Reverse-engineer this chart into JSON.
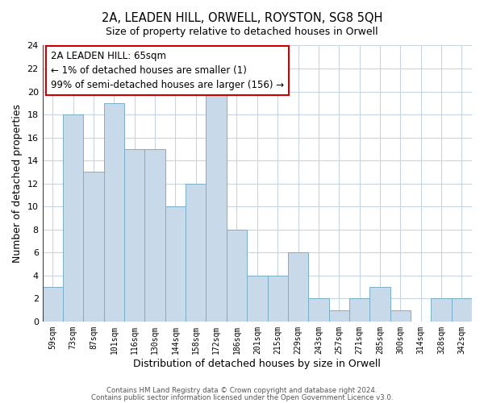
{
  "title": "2A, LEADEN HILL, ORWELL, ROYSTON, SG8 5QH",
  "subtitle": "Size of property relative to detached houses in Orwell",
  "xlabel": "Distribution of detached houses by size in Orwell",
  "ylabel": "Number of detached properties",
  "bar_labels": [
    "59sqm",
    "73sqm",
    "87sqm",
    "101sqm",
    "116sqm",
    "130sqm",
    "144sqm",
    "158sqm",
    "172sqm",
    "186sqm",
    "201sqm",
    "215sqm",
    "229sqm",
    "243sqm",
    "257sqm",
    "271sqm",
    "285sqm",
    "300sqm",
    "314sqm",
    "328sqm",
    "342sqm"
  ],
  "bar_values": [
    3,
    18,
    13,
    19,
    15,
    15,
    10,
    12,
    20,
    8,
    4,
    4,
    6,
    2,
    1,
    2,
    3,
    1,
    0,
    2,
    2
  ],
  "bar_color": "#c8daea",
  "bar_edge_color": "#7aafc8",
  "highlight_bar_index": 0,
  "highlight_bar_edge_color": "#cc0000",
  "annotation_line1": "2A LEADEN HILL: 65sqm",
  "annotation_line2": "← 1% of detached houses are smaller (1)",
  "annotation_line3": "99% of semi-detached houses are larger (156) →",
  "annotation_box_edge_color": "#cc0000",
  "annotation_box_face_color": "#ffffff",
  "red_line_color": "#cc0000",
  "ylim": [
    0,
    24
  ],
  "yticks": [
    0,
    2,
    4,
    6,
    8,
    10,
    12,
    14,
    16,
    18,
    20,
    22,
    24
  ],
  "footer1": "Contains HM Land Registry data © Crown copyright and database right 2024.",
  "footer2": "Contains public sector information licensed under the Open Government Licence v3.0.",
  "bg_color": "#ffffff",
  "grid_color": "#c8d4e0"
}
